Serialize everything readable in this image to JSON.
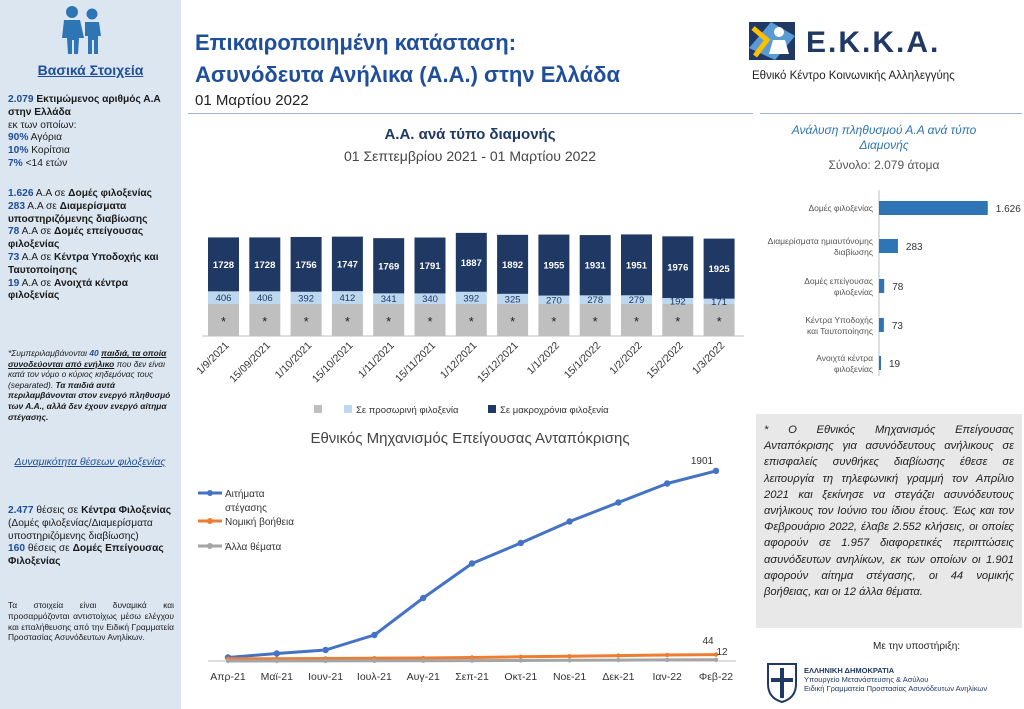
{
  "sidebar": {
    "heading": "Βασικά Στοιχεία",
    "line1_num": "2.079",
    "line1_text": "Εκτιμώμενος αριθμός Α.Α στην Ελλάδα",
    "line2": "εκ των οποίων:",
    "line3_num": "90%",
    "line3_text": "Αγόρια",
    "line4_num": "10%",
    "line4_text": "Κορίτσια",
    "line5_num": "7%",
    "line5_text": "<14 ετών",
    "acc1_num": "1.626",
    "acc1_text": "Α.Α σε",
    "acc1_bold": "Δομές φιλοξενίας",
    "acc2_num": "283",
    "acc2_text": "Α.Α σε",
    "acc2_bold": "Διαμερίσματα υποστηριζόμενης διαβίωσης",
    "acc3_num": "78",
    "acc3_text": "Α.Α σε",
    "acc3_bold": "Δομές επείγουσας φιλοξενίας",
    "acc4_num": "73",
    "acc4_text": "Α.Α σε",
    "acc4_bold": "Κέντρα Υποδοχής και Ταυτοποίησης",
    "acc5_num": "19",
    "acc5_text": "Α.Α σε",
    "acc5_bold": "Ανοιχτά κέντρα φιλοξενίας",
    "note_a": "*Συμπεριλαμβάνονται",
    "note_num": "40",
    "note_b": "παιδιά, τα οποία συνοδεύονται από ενήλικο",
    "note_c": "που δεν είναι κατά τον νόμο ο κύριος κηδεμόνας τους (separated).",
    "note_d": "Τα παιδιά αυτά περιλαμβάνονται στον ενεργό πληθυσμό των Α.Α., αλλά δεν έχουν ενεργό αίτημα στέγασης.",
    "heading2": "Δυναμικότητα θέσεων φιλοξενίας",
    "cap1_num": "2.477",
    "cap1_text": "θέσεις σε",
    "cap1_bold": "Κέντρα Φιλοξενίας",
    "cap1_rest": "(Δομές φιλοξενίας/Διαμερίσματα υποστηριζόμενης διαβίωσης)",
    "cap2_num": "160",
    "cap2_text": "θέσεις σε",
    "cap2_bold": "Δομές Επείγουσας Φιλοξενίας",
    "footnote": "Τα στοιχεία είναι δυναμικά και προσαρμόζονται αντιστοίχως μέσω ελέγχου και επαλήθευσης από την Ειδική Γραμματεία Προστασίας Ασυνόδευτων Ανηλίκων."
  },
  "header": {
    "title1": "Επικαιροποιημένη κατάσταση:",
    "title2": "Ασυνόδευτα Ανήλικα (Α.Α.) στην Ελλάδα",
    "date": "01 Μαρτίου 2022",
    "logo_text": "Ε.Κ.Κ.Α.",
    "logo_sub": "Εθνικό Κέντρο Κοινωνικής Αλληλεγγύης"
  },
  "note_box": {
    "text": "* Ο Εθνικός Μηχανισμός Επείγουσας Ανταπόκρισης για ασυνόδευτους ανήλικους σε επισφαλείς συνθήκες διαβίωσης έθεσε σε λειτουργία τη τηλεφωνική γραμμή τον Απρίλιο 2021 και ξεκίνησε να στεγάζει ασυνόδευτους ανήλικους τον Ιούνιο του ίδιου έτους. Έως και τον Φεβρουάριο 2022, έλαβε 2.552 κλήσεις, οι οποίες αφορούν σε 1.957 διαφορετικές περιπτώσεις ασυνόδευτων ανηλίκων, εκ των οποίων οι 1.901 αφορούν αίτημα στέγασης, οι 44 νομικής βοήθειας, και οι 12 άλλα θέματα."
  },
  "support": {
    "label": "Με την υποστήριξη:",
    "org1": "ΕΛΛΗΝΙΚΗ ΔΗΜΟΚΡΑΤΙΑ",
    "org2": "Υπουργείο Μετανάστευσης & Ασύλου",
    "org3": "Ειδική Γραμματεία Προστασίας Ασυνόδευτων Ανηλίκων"
  },
  "colors": {
    "navy": "#1f3864",
    "lightblue": "#bdd7ee",
    "grey": "#bfbfbf",
    "bar_blue": "#2e75b6",
    "line_blue": "#4472c4",
    "line_orange": "#ed7d31",
    "line_grey": "#a5a5a5",
    "title_blue": "#1f4e9a"
  },
  "chart_data": [
    {
      "type": "bar",
      "stacked": true,
      "title": "Α.Α. ανά τύπο διαμονής",
      "subtitle": "01 Σεπτεμβρίου 2021 - 01 Μαρτίου 2022",
      "categories": [
        "1/9/2021",
        "15/09/2021",
        "1/10/2021",
        "15/10/2021",
        "1/11/2021",
        "15/11/2021",
        "1/12/2021",
        "15/12/2021",
        "1/1/2022",
        "15/1/2022",
        "1/2/2022",
        "15/2/2022",
        "1/3/2022"
      ],
      "series": [
        {
          "name": "",
          "marker": "*",
          "values": [
            null,
            null,
            null,
            null,
            null,
            null,
            null,
            null,
            null,
            null,
            null,
            null,
            null
          ]
        },
        {
          "name": "Σε προσωρινή φιλοξενία",
          "values": [
            406,
            406,
            392,
            412,
            341,
            340,
            392,
            325,
            270,
            278,
            279,
            192,
            171
          ]
        },
        {
          "name": "Σε μακροχρόνια φιλοξενία",
          "values": [
            1728,
            1728,
            1756,
            1747,
            1769,
            1791,
            1887,
            1892,
            1955,
            1931,
            1951,
            1976,
            1925
          ]
        }
      ],
      "legend": [
        "",
        "Σε προσωρινή φιλοξενία",
        "Σε μακροχρόνια φιλοξενία"
      ],
      "legend_position": "bottom"
    },
    {
      "type": "bar",
      "orientation": "horizontal",
      "title": "Ανάλυση πληθυσμού Α.Α ανά τύπο Διαμονής",
      "subtitle": "Σύνολο: 2.079 άτομα",
      "categories": [
        "Δομές φιλοξενίας",
        "Διαμερίσματα ημιαυτόνομης διαβίωσης",
        "Δομές επείγουσας φιλοξενίας",
        "Κέντρα Υποδοχής και Ταυτοποίησης",
        "Ανοιχτά κέντρα φιλοξενίας"
      ],
      "values": [
        1626,
        283,
        78,
        73,
        19
      ],
      "value_labels": [
        "1.626",
        "283",
        "78",
        "73",
        "19"
      ]
    },
    {
      "type": "line",
      "title": "Εθνικός Μηχανισμός Επείγουσας Ανταπόκρισης",
      "x": [
        "Απρ-21",
        "Μαϊ-21",
        "Ιουν-21",
        "Ιουλ-21",
        "Αυγ-21",
        "Σεπ-21",
        "Οκτ-21",
        "Νοε-21",
        "Δεκ-21",
        "Ιαν-22",
        "Φεβ-22"
      ],
      "series": [
        {
          "name": "Αιτήματα στέγασης",
          "values": [
            35,
            75,
            110,
            260,
            630,
            975,
            1180,
            1395,
            1585,
            1775,
            1901
          ]
        },
        {
          "name": "Νομική βοήθεια",
          "values": [
            2,
            3,
            5,
            8,
            10,
            15,
            22,
            28,
            34,
            40,
            44
          ]
        },
        {
          "name": "Άλλα θέματα",
          "values": [
            0,
            1,
            1,
            2,
            3,
            4,
            5,
            7,
            9,
            11,
            12
          ]
        }
      ],
      "end_labels": [
        "1901",
        "44",
        "12"
      ],
      "legend_position": "left"
    }
  ]
}
